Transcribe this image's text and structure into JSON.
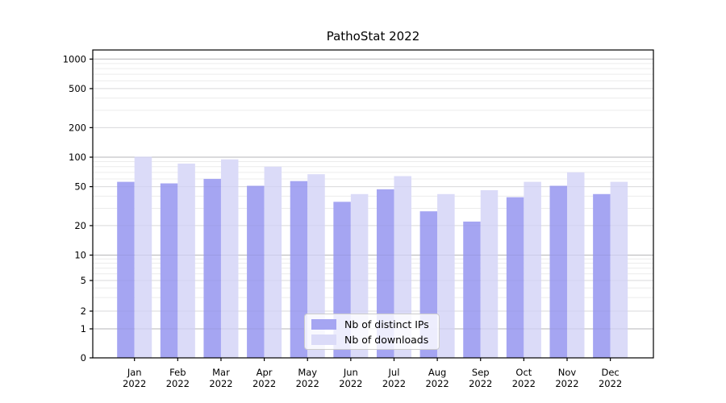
{
  "title": "PathoStat 2022",
  "chart_data": {
    "type": "bar",
    "title": "PathoStat 2022",
    "months": [
      "Jan",
      "Feb",
      "Mar",
      "Apr",
      "May",
      "Jun",
      "Jul",
      "Aug",
      "Sep",
      "Oct",
      "Nov",
      "Dec"
    ],
    "year": "2022",
    "series": [
      {
        "name": "Nb of distinct IPs",
        "color": "#a5a5f2",
        "values": [
          56,
          54,
          60,
          51,
          57,
          35,
          47,
          28,
          22,
          39,
          51,
          42
        ]
      },
      {
        "name": "Nb of downloads",
        "color": "#dbdbf8",
        "values": [
          101,
          86,
          95,
          80,
          67,
          42,
          64,
          42,
          46,
          56,
          70,
          56
        ]
      }
    ],
    "yscale": "symlog",
    "y_ticks": [
      0,
      1,
      2,
      5,
      10,
      20,
      50,
      100,
      200,
      500,
      1000
    ],
    "ylim": [
      0,
      1000
    ],
    "grid": true,
    "legend_position": "lower center"
  },
  "colors": {
    "bar_distinct_ips": "#a5a5f2",
    "bar_downloads": "#dbdbf8",
    "grid_major": "#c3c3c3",
    "grid_labeled": "#e2e2e2",
    "grid_minor": "#ececec",
    "axis": "#000000",
    "background": "#ffffff",
    "legend_border": "#cccccc"
  }
}
